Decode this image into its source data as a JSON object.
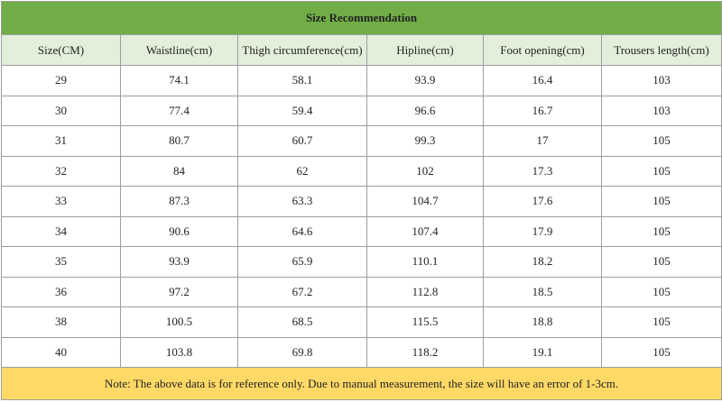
{
  "table": {
    "title": "Size Recommendation",
    "headers": [
      "Size(CM)",
      "Waistline(cm)",
      "Thigh circumference(cm)",
      "Hipline(cm)",
      "Foot opening(cm)",
      "Trousers length(cm)"
    ],
    "rows": [
      [
        "29",
        "74.1",
        "58.1",
        "93.9",
        "16.4",
        "103"
      ],
      [
        "30",
        "77.4",
        "59.4",
        "96.6",
        "16.7",
        "103"
      ],
      [
        "31",
        "80.7",
        "60.7",
        "99.3",
        "17",
        "105"
      ],
      [
        "32",
        "84",
        "62",
        "102",
        "17.3",
        "105"
      ],
      [
        "33",
        "87.3",
        "63.3",
        "104.7",
        "17.6",
        "105"
      ],
      [
        "34",
        "90.6",
        "64.6",
        "107.4",
        "17.9",
        "105"
      ],
      [
        "35",
        "93.9",
        "65.9",
        "110.1",
        "18.2",
        "105"
      ],
      [
        "36",
        "97.2",
        "67.2",
        "112.8",
        "18.5",
        "105"
      ],
      [
        "38",
        "100.5",
        "68.5",
        "115.5",
        "18.8",
        "105"
      ],
      [
        "40",
        "103.8",
        "69.8",
        "118.2",
        "19.1",
        "105"
      ]
    ],
    "note": "Note: The above data is for reference only. Due to manual measurement, the size will have an error of 1-3cm."
  }
}
